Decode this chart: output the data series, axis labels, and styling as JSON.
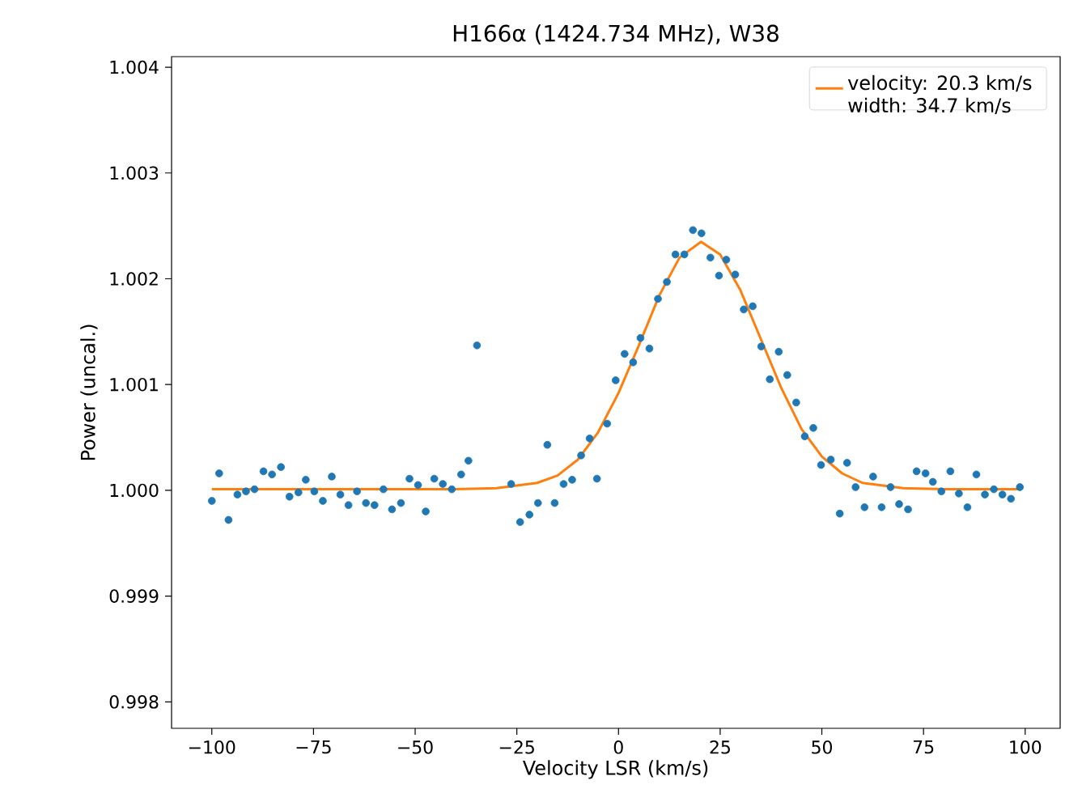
{
  "chart_data": {
    "type": "scatter",
    "title": "H166α (1424.734 MHz), W38",
    "xlabel": "Velocity LSR (km/s)",
    "ylabel": "Power (uncal.)",
    "xlim": [
      -109.9,
      108.6
    ],
    "ylim": [
      0.99775,
      1.0041
    ],
    "xticks": [
      {
        "value": -100,
        "label": "−100"
      },
      {
        "value": -75,
        "label": "−75"
      },
      {
        "value": -50,
        "label": "−50"
      },
      {
        "value": -25,
        "label": "−25"
      },
      0,
      25,
      50,
      75,
      100
    ],
    "yticks": [
      {
        "value": 0.998,
        "label": "0.998"
      },
      {
        "value": 0.999,
        "label": "0.999"
      },
      {
        "value": 1.0,
        "label": "1.000"
      },
      {
        "value": 1.001,
        "label": "1.001"
      },
      {
        "value": 1.002,
        "label": "1.002"
      },
      {
        "value": 1.003,
        "label": "1.003"
      },
      {
        "value": 1.004,
        "label": "1.004"
      }
    ],
    "grid": false,
    "legend": "top right",
    "series": [
      {
        "marker": "circle",
        "color": "#1f77b4",
        "x": [
          -100,
          -98.2,
          -95.9,
          -93.7,
          -91.6,
          -89.5,
          -87.3,
          -85.2,
          -83.0,
          -80.9,
          -78.7,
          -76.9,
          -74.8,
          -72.7,
          -70.5,
          -68.4,
          -66.4,
          -64.3,
          -62.1,
          -60.0,
          -57.8,
          -55.7,
          -53.5,
          -51.4,
          -49.3,
          -47.4,
          -45.3,
          -43.2,
          -41.0,
          -38.7,
          -36.9,
          -34.8,
          -26.4,
          -24.2,
          -21.9,
          -19.8,
          -17.5,
          -15.7,
          -13.5,
          -11.4,
          -9.2,
          -7.1,
          -5.3,
          -2.8,
          -0.7,
          1.5,
          3.6,
          5.4,
          7.6,
          9.7,
          11.9,
          14.0,
          16.2,
          18.3,
          20.4,
          22.6,
          24.7,
          26.5,
          28.7,
          30.8,
          33.0,
          35.1,
          37.2,
          39.4,
          41.5,
          43.7,
          45.8,
          47.9,
          49.8,
          52.2,
          54.4,
          56.2,
          58.3,
          60.5,
          62.6,
          64.7,
          66.9,
          69.0,
          71.2,
          73.3,
          75.5,
          77.3,
          79.4,
          81.6,
          83.7,
          85.8,
          88.0,
          90.1,
          92.3,
          94.4,
          96.5,
          98.7
        ],
        "values": [
          0.9999,
          1.00016,
          0.99972,
          0.99996,
          0.99999,
          1.00001,
          1.00018,
          1.00015,
          1.00022,
          0.99994,
          0.99998,
          1.0001,
          0.99999,
          0.9999,
          1.00013,
          0.99996,
          0.99986,
          0.99999,
          0.99988,
          0.99986,
          1.00001,
          0.99982,
          0.99988,
          1.00011,
          1.00005,
          0.9998,
          1.00011,
          1.00006,
          1.00001,
          1.00015,
          1.00028,
          1.00137,
          1.00006,
          0.9997,
          0.99977,
          0.99988,
          1.00043,
          0.99988,
          1.00006,
          1.0001,
          1.00033,
          1.00049,
          1.00011,
          1.00063,
          1.00104,
          1.00129,
          1.00121,
          1.00144,
          1.00134,
          1.00181,
          1.00197,
          1.00223,
          1.00223,
          1.00246,
          1.00243,
          1.0022,
          1.00203,
          1.00218,
          1.00204,
          1.00171,
          1.00174,
          1.00136,
          1.00105,
          1.00131,
          1.00109,
          1.00083,
          1.00051,
          1.00059,
          1.00024,
          1.00029,
          0.99978,
          1.00026,
          1.00003,
          0.99984,
          1.00013,
          0.99984,
          1.00003,
          0.99987,
          0.99982,
          1.00018,
          1.00016,
          1.00008,
          0.99999,
          1.00018,
          0.99997,
          0.99984,
          1.00015,
          0.99996,
          1.00001,
          0.99996,
          0.99992,
          1.00003
        ]
      },
      {
        "type": "line",
        "marker": "none",
        "line_style": "solid",
        "color": "#ff7f0e",
        "name": "velocity: 20.3 km/s width: 34.7 km/s",
        "x": [
          -100,
          -40,
          -30,
          -20,
          -15,
          -10,
          -5,
          0,
          5,
          10,
          15,
          20.3,
          25,
          30,
          35,
          40,
          45,
          50,
          55,
          60,
          70,
          80,
          98.7
        ],
        "values": [
          1.00001,
          1.00001,
          1.00002,
          1.00007,
          1.00014,
          1.00029,
          1.00055,
          1.00092,
          1.00137,
          1.00184,
          1.0022,
          1.00235,
          1.00223,
          1.00189,
          1.00143,
          1.00097,
          1.00058,
          1.00032,
          1.00016,
          1.00007,
          1.00002,
          1.00001,
          1.00001
        ]
      }
    ]
  }
}
